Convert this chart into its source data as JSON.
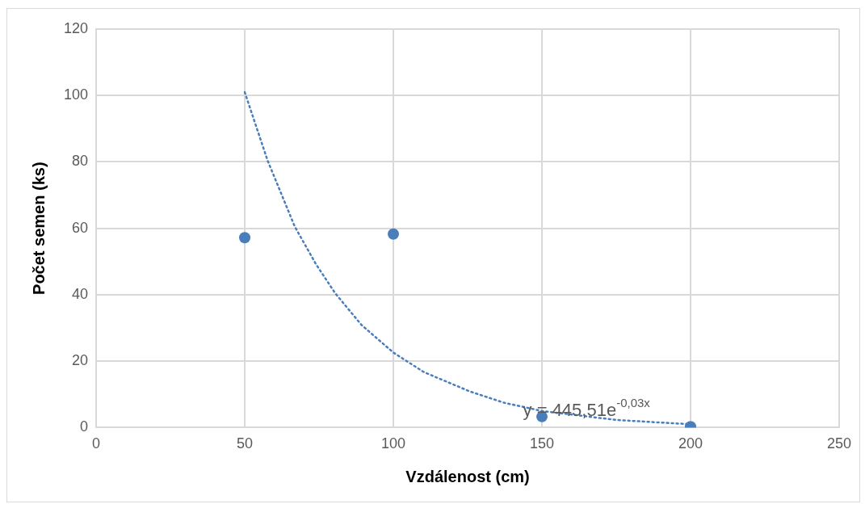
{
  "chart_data": {
    "type": "scatter",
    "xlabel": "Vzdálenost (cm)",
    "ylabel": "Počet semen (ks)",
    "series": [
      {
        "type": "scatter",
        "color": "#4a7ebb",
        "x": [
          50,
          100,
          150,
          200
        ],
        "values": [
          57.2,
          58.3,
          3.3,
          0.3
        ],
        "marker": "circle"
      },
      {
        "type": "line",
        "color": "#4a7ebb",
        "line_style": "dotted",
        "marker": "none",
        "x": [
          50,
          57.7,
          66.8,
          73.9,
          80.4,
          89.3,
          100,
          110.3,
          125.7,
          137.2,
          150,
          175,
          200
        ],
        "values": [
          101,
          80.4,
          60.6,
          49.3,
          40.5,
          30.9,
          22.6,
          16.7,
          10.9,
          7.5,
          5.0,
          2.3,
          1.0
        ]
      }
    ],
    "annotations": [
      "y = 445,51e$^{-0,03x}$"
    ],
    "xlim": [
      0,
      250
    ],
    "xticks": [
      0,
      50,
      100,
      150,
      200,
      250
    ],
    "ylim": [
      0,
      120
    ],
    "yticks": [
      0,
      20,
      40,
      60,
      80,
      100,
      120
    ],
    "grid": true,
    "legend": false
  }
}
